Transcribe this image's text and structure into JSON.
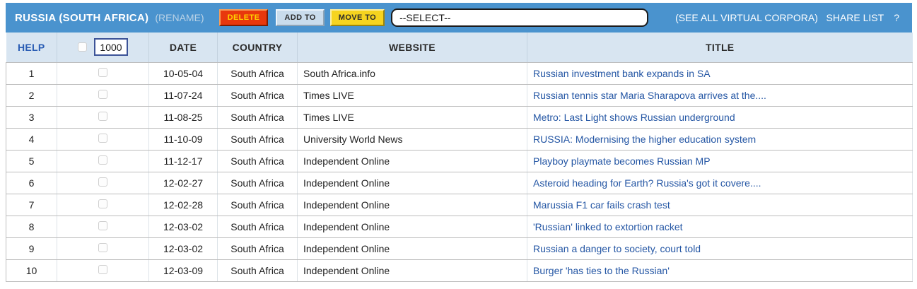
{
  "toolbar": {
    "corpus_name": "RUSSIA (SOUTH AFRICA)",
    "rename_label": "(RENAME)",
    "delete_label": "DELETE",
    "add_to_label": "ADD TO",
    "move_to_label": "MOVE TO",
    "select_value": "--SELECT--",
    "see_all_label": "(SEE ALL VIRTUAL CORPORA)",
    "share_list_label": "SHARE LIST",
    "share_help_label": "?"
  },
  "table": {
    "help_label": "HELP",
    "limit_value": "1000",
    "headers": {
      "date": "DATE",
      "country": "COUNTRY",
      "website": "WEBSITE",
      "title": "TITLE"
    },
    "rows": [
      {
        "num": "1",
        "date": "10-05-04",
        "country": "South Africa",
        "website": "South Africa.info",
        "title": "Russian investment bank expands in SA"
      },
      {
        "num": "2",
        "date": "11-07-24",
        "country": "South Africa",
        "website": "Times LIVE",
        "title": "Russian tennis star Maria Sharapova arrives at the...."
      },
      {
        "num": "3",
        "date": "11-08-25",
        "country": "South Africa",
        "website": "Times LIVE",
        "title": "Metro: Last Light shows Russian underground"
      },
      {
        "num": "4",
        "date": "11-10-09",
        "country": "South Africa",
        "website": "University World News",
        "title": "RUSSIA: Modernising the higher education system"
      },
      {
        "num": "5",
        "date": "11-12-17",
        "country": "South Africa",
        "website": "Independent Online",
        "title": "Playboy playmate becomes Russian MP"
      },
      {
        "num": "6",
        "date": "12-02-27",
        "country": "South Africa",
        "website": "Independent Online",
        "title": "Asteroid heading for Earth? Russia's got it covere...."
      },
      {
        "num": "7",
        "date": "12-02-28",
        "country": "South Africa",
        "website": "Independent Online",
        "title": "Marussia F1 car fails crash test"
      },
      {
        "num": "8",
        "date": "12-03-02",
        "country": "South Africa",
        "website": "Independent Online",
        "title": "'Russian' linked to extortion racket"
      },
      {
        "num": "9",
        "date": "12-03-02",
        "country": "South Africa",
        "website": "Independent Online",
        "title": "Russian a danger to society, court told"
      },
      {
        "num": "10",
        "date": "12-03-09",
        "country": "South Africa",
        "website": "Independent Online",
        "title": "Burger 'has ties to the Russian'"
      }
    ]
  },
  "colors": {
    "toolbar_bg": "#4a93ce",
    "header_bg": "#d8e5f1",
    "link_blue": "#2456a4",
    "help_blue": "#2a5db4",
    "delete_bg": "#e8380d",
    "delete_text": "#ffd400",
    "add_to_bg": "#c9dcec",
    "move_to_bg": "#f6d41f",
    "row_border": "#bdbdbd"
  }
}
